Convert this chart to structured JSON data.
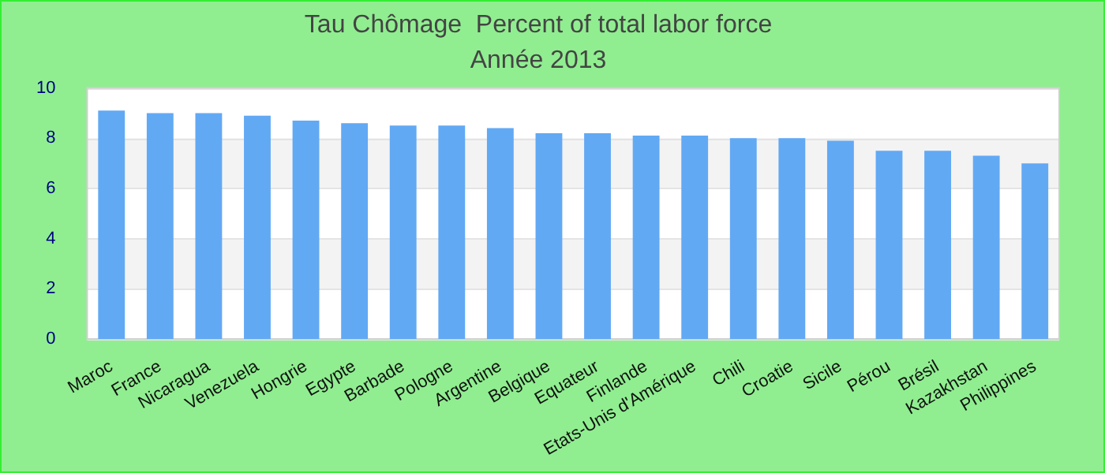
{
  "chart_data": {
    "type": "bar",
    "title": "Tau Chômage  Percent of total labor force",
    "subtitle": "Année 2013",
    "categories": [
      "Maroc",
      "France",
      "Nicaragua",
      "Venezuela",
      "Hongrie",
      "Egypte",
      "Barbade",
      "Pologne",
      "Argentine",
      "Belgique",
      "Equateur",
      "Finlande",
      "Etats-Unis d'Amérique",
      "Chili",
      "Croatie",
      "Sicile",
      "Pérou",
      "Brésil",
      "Kazakhstan",
      "Philippines"
    ],
    "values": [
      9.1,
      9.0,
      9.0,
      8.9,
      8.7,
      8.6,
      8.5,
      8.5,
      8.4,
      8.2,
      8.2,
      8.1,
      8.1,
      8.0,
      8.0,
      7.9,
      7.5,
      7.5,
      7.3,
      7.0
    ],
    "color": "#62a9f4",
    "ylim": [
      0,
      10
    ],
    "yticks": [
      0,
      2,
      4,
      6,
      8,
      10
    ],
    "grid": "y"
  }
}
